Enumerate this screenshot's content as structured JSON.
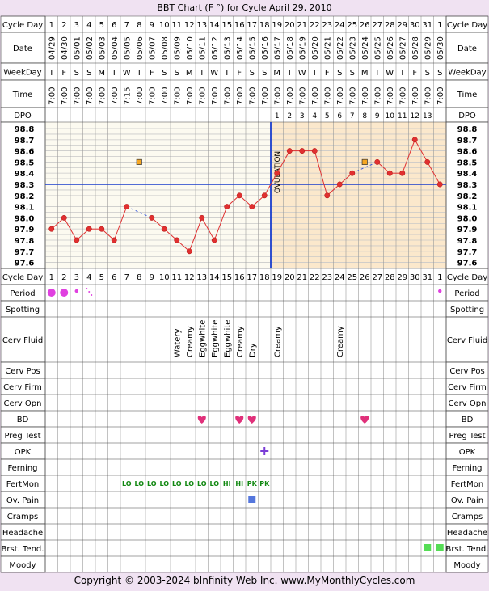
{
  "title": "BBT Chart (F °) for Cycle April 29, 2010",
  "footer": "Copyright © 2003-2024 bInfinity Web Inc.    www.MyMonthlyCycles.com",
  "row_labels": {
    "cycle_day": "Cycle Day",
    "date": "Date",
    "weekday": "WeekDay",
    "time": "Time",
    "dpo": "DPO",
    "period": "Period",
    "spotting": "Spotting",
    "cerv_fluid": "Cerv Fluid",
    "cerv_pos": "Cerv Pos",
    "cerv_firm": "Cerv Firm",
    "cerv_opn": "Cerv Opn",
    "bd": "BD",
    "preg_test": "Preg Test",
    "opk": "OPK",
    "ferning": "Ferning",
    "fertmon": "FertMon",
    "ov_pain": "Ov. Pain",
    "cramps": "Cramps",
    "headache": "Headache",
    "brst_tend": "Brst. Tend.",
    "moody": "Moody"
  },
  "ovulation_label": "OVULATION",
  "colors": {
    "background": "#f0e2f2",
    "luteal": "#fbe8cc",
    "follicular": "#fcfaf0",
    "line": "#e03030",
    "coverline": "#1a3ccc",
    "green": "#118811",
    "heart": "#e0307a",
    "period": "#e040e0"
  },
  "chart_data": {
    "type": "line",
    "title": "BBT Chart (F °) for Cycle April 29, 2010",
    "cycle_days": [
      "1",
      "2",
      "3",
      "4",
      "5",
      "6",
      "7",
      "8",
      "9",
      "10",
      "11",
      "12",
      "13",
      "14",
      "15",
      "16",
      "17",
      "18",
      "19",
      "20",
      "21",
      "22",
      "23",
      "24",
      "25",
      "26",
      "27",
      "28",
      "29",
      "30",
      "31",
      "1"
    ],
    "dates": [
      "04/29",
      "04/30",
      "05/01",
      "05/02",
      "05/03",
      "05/04",
      "05/05",
      "05/06",
      "05/07",
      "05/08",
      "05/09",
      "05/10",
      "05/11",
      "05/12",
      "05/13",
      "05/14",
      "05/15",
      "05/16",
      "05/17",
      "05/18",
      "05/19",
      "05/20",
      "05/21",
      "05/22",
      "05/23",
      "05/24",
      "05/25",
      "05/26",
      "05/27",
      "05/28",
      "05/29",
      "05/30"
    ],
    "weekdays": [
      "T",
      "F",
      "S",
      "S",
      "M",
      "T",
      "W",
      "T",
      "F",
      "S",
      "S",
      "M",
      "T",
      "W",
      "T",
      "F",
      "S",
      "S",
      "M",
      "T",
      "W",
      "T",
      "F",
      "S",
      "S",
      "M",
      "T",
      "W",
      "T",
      "F",
      "S",
      "S"
    ],
    "times": [
      "7:00",
      "7:00",
      "7:00",
      "7:00",
      "7:00",
      "7:00",
      "7:15",
      "7:00",
      "7:00",
      "7:00",
      "7:00",
      "7:00",
      "7:00",
      "7:00",
      "7:00",
      "7:00",
      "7:00",
      "7:00",
      "7:00",
      "7:00",
      "7:00",
      "7:00",
      "7:00",
      "7:00",
      "7:00",
      "7:00",
      "7:00",
      "7:00",
      "7:00",
      "7:00",
      "7:00",
      "7:00"
    ],
    "dpo": [
      "",
      "",
      "",
      "",
      "",
      "",
      "",
      "",
      "",
      "",
      "",
      "",
      "",
      "",
      "",
      "",
      "",
      "",
      "1",
      "2",
      "3",
      "4",
      "5",
      "6",
      "7",
      "8",
      "9",
      "10",
      "11",
      "12",
      "13",
      ""
    ],
    "temps": [
      97.9,
      98.0,
      97.8,
      97.9,
      97.9,
      97.8,
      98.1,
      null,
      98.0,
      97.9,
      97.8,
      97.7,
      98.0,
      97.8,
      98.1,
      98.2,
      98.1,
      98.2,
      98.4,
      98.6,
      98.6,
      98.6,
      98.2,
      98.3,
      98.4,
      null,
      98.5,
      98.4,
      98.4,
      98.7,
      98.5,
      98.3
    ],
    "discarded": [
      {
        "day_index": 7,
        "value": 98.5
      },
      {
        "day_index": 25,
        "value": 98.5
      }
    ],
    "y_ticks": [
      "98.8",
      "98.7",
      "98.6",
      "98.5",
      "98.4",
      "98.3",
      "98.2",
      "98.1",
      "98.0",
      "97.9",
      "97.8",
      "97.7",
      "97.6"
    ],
    "ylim": [
      97.6,
      98.8
    ],
    "coverline": 98.3,
    "ovulation_day_index": 17,
    "period": {
      "big": [
        0,
        1
      ],
      "small": [
        2,
        31
      ],
      "spots": [
        3
      ]
    },
    "cerv_fluid": [
      {
        "day_index": 10,
        "text": "Watery"
      },
      {
        "day_index": 11,
        "text": "Creamy"
      },
      {
        "day_index": 12,
        "text": "Eggwhite"
      },
      {
        "day_index": 13,
        "text": "Eggwhite"
      },
      {
        "day_index": 14,
        "text": "Eggwhite"
      },
      {
        "day_index": 15,
        "text": "Creamy"
      },
      {
        "day_index": 16,
        "text": "Dry"
      },
      {
        "day_index": 18,
        "text": "Creamy"
      },
      {
        "day_index": 23,
        "text": "Creamy"
      }
    ],
    "bd": [
      12,
      15,
      16,
      25
    ],
    "opk": [
      17
    ],
    "fertmon": [
      {
        "day_index": 6,
        "text": "LO"
      },
      {
        "day_index": 7,
        "text": "LO"
      },
      {
        "day_index": 8,
        "text": "LO"
      },
      {
        "day_index": 9,
        "text": "LO"
      },
      {
        "day_index": 10,
        "text": "LO"
      },
      {
        "day_index": 11,
        "text": "LO"
      },
      {
        "day_index": 12,
        "text": "LO"
      },
      {
        "day_index": 13,
        "text": "LO"
      },
      {
        "day_index": 14,
        "text": "HI"
      },
      {
        "day_index": 15,
        "text": "HI"
      },
      {
        "day_index": 16,
        "text": "PK"
      },
      {
        "day_index": 17,
        "text": "PK"
      }
    ],
    "ov_pain": [
      16
    ],
    "brst_tend": [
      30,
      31
    ]
  }
}
